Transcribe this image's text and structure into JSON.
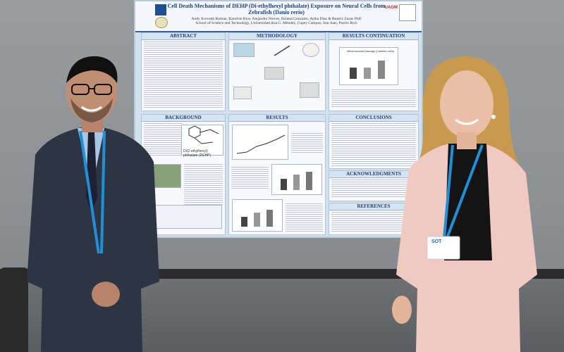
{
  "poster": {
    "title": "Cell Death Mechanisms of DEHP (Di-ethylhexyl phthalate) Exposure on Neural Cells from Zebrafish (Danio rerio)",
    "authors": "Andy Acevedo Roman, Karoline Rios, Alejandro Nieves, Roland Gonzalez, Aytha Diaz & Beatriz Zayas PhD",
    "affiliation": "School of Science and Technology, Universidad Ana G. Méndez, Cupey Campus, San Juan, Puerto Rico",
    "logo_right": "UAGM",
    "sections": {
      "abstract": "ABSTRACT",
      "methodology": "METHODOLOGY",
      "results_cont": "RESULTS CONTINUATION",
      "background": "BACKGROUND",
      "results": "RESULTS",
      "conclusions": "CONCLUSIONS",
      "acknowledgments": "ACKNOWLEDGMENTS",
      "references": "REFERENCES"
    },
    "fig_background_label": "Di(2-ethylhexyl) phthalate (DEHP)",
    "fig_results_cont_title": "Mitochondrial Damage (Labeled cells)"
  },
  "badge_text": "SOT"
}
